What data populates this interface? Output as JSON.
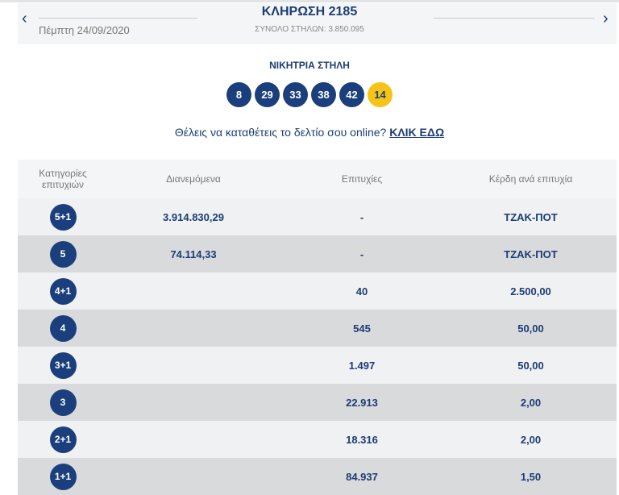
{
  "header": {
    "title": "ΚΛΗΡΩΣΗ 2185",
    "date": "Πέμπτη 24/09/2020",
    "total": "ΣΥΝΟΛΟ ΣΤΗΛΩΝ: 3.850.095",
    "prev": "‹",
    "next": "›"
  },
  "winning": {
    "label": "ΝΙΚΗΤΡΙΑ ΣΤΗΛΗ",
    "numbers": [
      "8",
      "29",
      "33",
      "38",
      "42"
    ],
    "bonus": "14"
  },
  "promo": {
    "text": "Θέλεις να καταθέτεις το δελτίο σου online? ",
    "link": "ΚΛΙΚ ΕΔΩ"
  },
  "table": {
    "headers": [
      "Κατηγορίες επιτυχιών",
      "Διανεμόμενα",
      "Επιτυχίες",
      "Κέρδη ανά επιτυχία"
    ],
    "rows": [
      {
        "cat": "5+1",
        "dist": "3.914.830,29",
        "wins": "-",
        "prize": "ΤΖΑΚ-ΠΟΤ"
      },
      {
        "cat": "5",
        "dist": "74.114,33",
        "wins": "-",
        "prize": "ΤΖΑΚ-ΠΟΤ"
      },
      {
        "cat": "4+1",
        "dist": "",
        "wins": "40",
        "prize": "2.500,00"
      },
      {
        "cat": "4",
        "dist": "",
        "wins": "545",
        "prize": "50,00"
      },
      {
        "cat": "3+1",
        "dist": "",
        "wins": "1.497",
        "prize": "50,00"
      },
      {
        "cat": "3",
        "dist": "",
        "wins": "22.913",
        "prize": "2,00"
      },
      {
        "cat": "2+1",
        "dist": "",
        "wins": "18.316",
        "prize": "2,00"
      },
      {
        "cat": "1+1",
        "dist": "",
        "wins": "84.937",
        "prize": "1,50"
      }
    ]
  }
}
